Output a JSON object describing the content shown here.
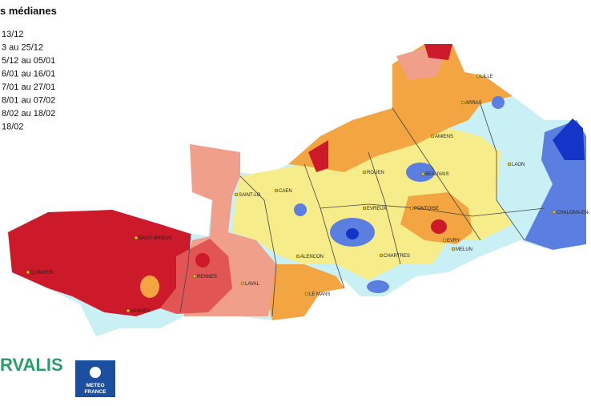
{
  "header": {
    "title": "s médianes"
  },
  "legend": {
    "items": [
      "13/12",
      "3 au 25/12",
      "5/12 au 05/01",
      "6/01 au 16/01",
      "7/01 au 27/01",
      "8/01 au 07/02",
      "8/02 au 18/02",
      "18/02"
    ]
  },
  "cities": [
    {
      "label": "LILLE"
    },
    {
      "label": "ARRAS"
    },
    {
      "label": "AMIENS"
    },
    {
      "label": "LAON"
    },
    {
      "label": "BEAUVAIS"
    },
    {
      "label": "ROUEN"
    },
    {
      "label": "CAEN"
    },
    {
      "label": "SAINT-LO"
    },
    {
      "label": "EVREUX"
    },
    {
      "label": "PONTOISE"
    },
    {
      "label": "CHALONS-EN-"
    },
    {
      "label": "ALENCON"
    },
    {
      "label": "CHARTRES"
    },
    {
      "label": "EVRY"
    },
    {
      "label": "MELUN"
    },
    {
      "label": "LE MANS"
    },
    {
      "label": "RENNES"
    },
    {
      "label": "LAVAL"
    },
    {
      "label": "VANNES"
    },
    {
      "label": "QUIMPER"
    },
    {
      "label": "SAINT-BRIEUC"
    }
  ],
  "logos": {
    "arvalis": "RVALIS",
    "meteo_line1": "METEO",
    "meteo_line2": "FRANCE"
  }
}
